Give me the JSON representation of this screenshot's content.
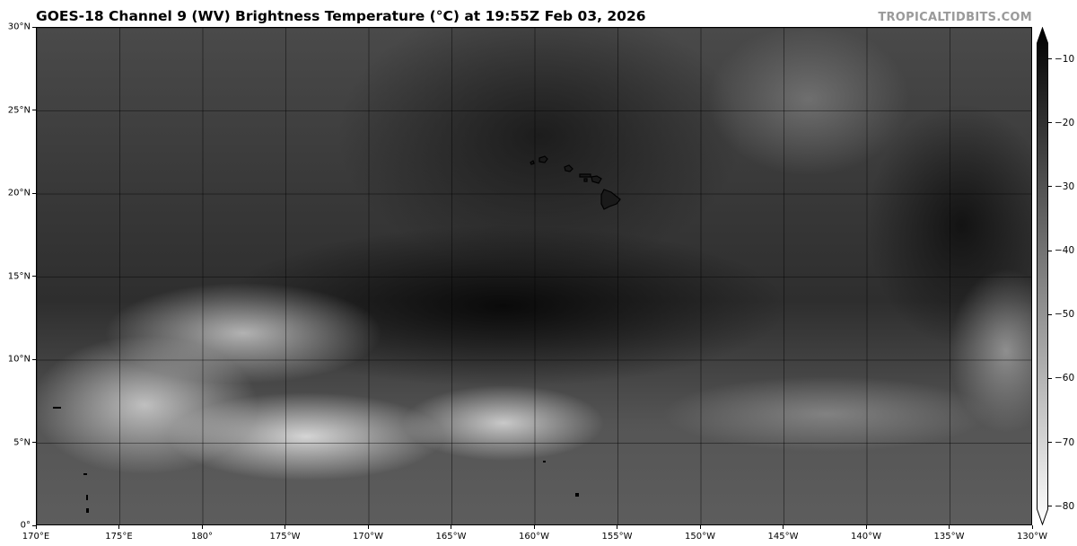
{
  "title": "GOES-18 Channel 9 (WV) Brightness Temperature (°C) at 19:55Z Feb 03, 2026",
  "watermark": "TROPICALTIDBITS.COM",
  "map": {
    "extent_lon": [
      170,
      230
    ],
    "extent_lat": [
      0,
      30
    ],
    "lon_ticks": [
      {
        "lon": 170,
        "label": "170°E"
      },
      {
        "lon": 175,
        "label": "175°E"
      },
      {
        "lon": 180,
        "label": "180°"
      },
      {
        "lon": 185,
        "label": "175°W"
      },
      {
        "lon": 190,
        "label": "170°W"
      },
      {
        "lon": 195,
        "label": "165°W"
      },
      {
        "lon": 200,
        "label": "160°W"
      },
      {
        "lon": 205,
        "label": "155°W"
      },
      {
        "lon": 210,
        "label": "150°W"
      },
      {
        "lon": 215,
        "label": "145°W"
      },
      {
        "lon": 220,
        "label": "140°W"
      },
      {
        "lon": 225,
        "label": "135°W"
      },
      {
        "lon": 230,
        "label": "130°W"
      }
    ],
    "lat_ticks": [
      {
        "lat": 0,
        "label": "0°"
      },
      {
        "lat": 5,
        "label": "5°N"
      },
      {
        "lat": 10,
        "label": "10°N"
      },
      {
        "lat": 15,
        "label": "15°N"
      },
      {
        "lat": 20,
        "label": "20°N"
      },
      {
        "lat": 25,
        "label": "25°N"
      },
      {
        "lat": 30,
        "label": "30°N"
      }
    ],
    "gridlines": true
  },
  "colorbar": {
    "range": [
      -83,
      -5
    ],
    "colormap": [
      "#000000",
      "#ffffff"
    ],
    "extend": "both",
    "ticks": [
      {
        "value": -10,
        "label": "−10"
      },
      {
        "value": -20,
        "label": "−20"
      },
      {
        "value": -30,
        "label": "−30"
      },
      {
        "value": -40,
        "label": "−40"
      },
      {
        "value": -50,
        "label": "−50"
      },
      {
        "value": -60,
        "label": "−60"
      },
      {
        "value": -70,
        "label": "−70"
      },
      {
        "value": -80,
        "label": "−80"
      }
    ]
  }
}
